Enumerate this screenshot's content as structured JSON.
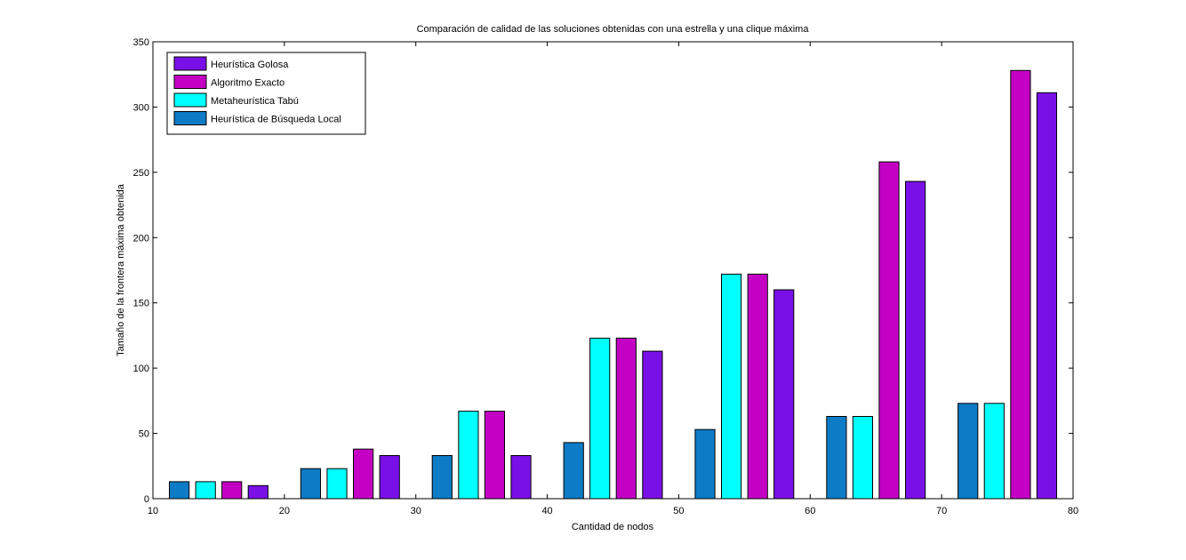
{
  "chart_data": {
    "type": "bar",
    "title": "Comparación de calidad de las soluciones obtenidas con una estrella y una clique máxima",
    "xlabel": "Cantidad de nodos",
    "ylabel": "Tamaño de la frontera máxima obtenida",
    "xlim": [
      10,
      80
    ],
    "ylim": [
      0,
      350
    ],
    "xticks": [
      "10",
      "20",
      "30",
      "40",
      "50",
      "60",
      "70",
      "80"
    ],
    "yticks": [
      "0",
      "50",
      "100",
      "150",
      "200",
      "250",
      "300",
      "350"
    ],
    "grid": false,
    "legend_position": "top-left",
    "categories": [
      "12",
      "22",
      "32",
      "42",
      "52",
      "62",
      "72"
    ],
    "series": [
      {
        "name": "Heurística de Búsqueda Local",
        "color": "#0d7bc6",
        "x": [
          12,
          22,
          32,
          42,
          52,
          62,
          72
        ],
        "values": [
          13,
          23,
          33,
          43,
          53,
          63,
          73
        ]
      },
      {
        "name": "Metaheurística Tabú",
        "color": "#00ffff",
        "x": [
          14,
          24,
          34,
          44,
          54,
          64,
          74
        ],
        "values": [
          13,
          23,
          67,
          123,
          172,
          63,
          73
        ]
      },
      {
        "name": "Algoritmo Exacto",
        "color": "#c400c4",
        "x": [
          16,
          26,
          36,
          46,
          56,
          66,
          76
        ],
        "values": [
          13,
          38,
          67,
          123,
          172,
          258,
          328
        ]
      },
      {
        "name": "Heurística Golosa",
        "color": "#7a10e8",
        "x": [
          18,
          28,
          38,
          48,
          58,
          68,
          78
        ],
        "values": [
          10,
          33,
          33,
          113,
          160,
          243,
          311
        ]
      }
    ],
    "legend_order": [
      3,
      2,
      1,
      0
    ]
  }
}
